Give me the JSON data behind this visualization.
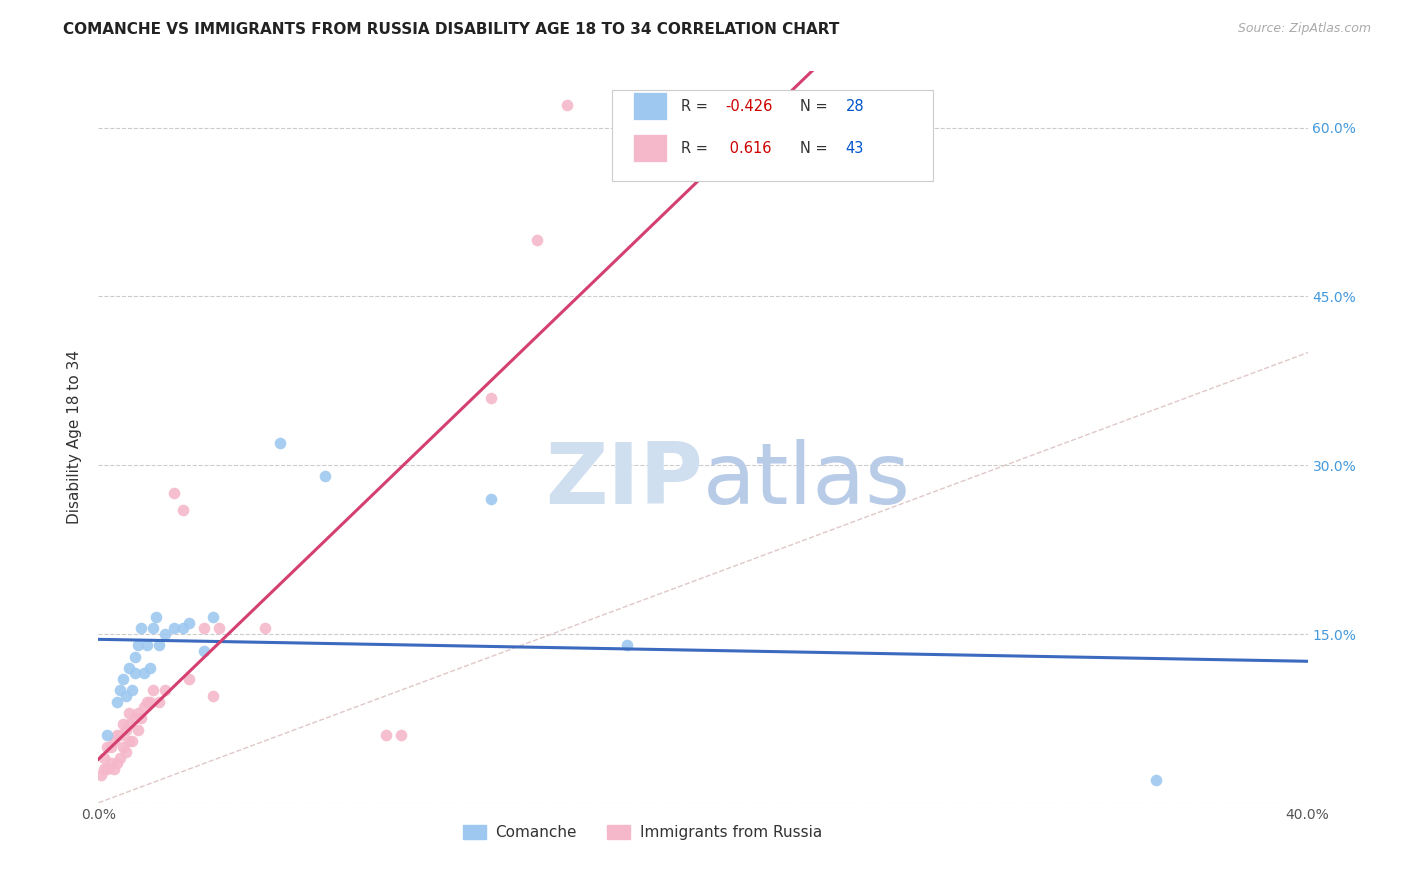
{
  "title": "COMANCHE VS IMMIGRANTS FROM RUSSIA DISABILITY AGE 18 TO 34 CORRELATION CHART",
  "source": "Source: ZipAtlas.com",
  "ylabel": "Disability Age 18 to 34",
  "xlim": [
    0.0,
    0.4
  ],
  "ylim": [
    0.0,
    0.65
  ],
  "xticks": [
    0.0,
    0.1,
    0.2,
    0.3,
    0.4
  ],
  "yticks": [
    0.0,
    0.15,
    0.3,
    0.45,
    0.6
  ],
  "background_color": "#ffffff",
  "grid_color": "#cccccc",
  "comanche_x": [
    0.003,
    0.006,
    0.007,
    0.008,
    0.009,
    0.01,
    0.011,
    0.012,
    0.012,
    0.013,
    0.014,
    0.015,
    0.016,
    0.017,
    0.018,
    0.019,
    0.02,
    0.022,
    0.025,
    0.028,
    0.03,
    0.035,
    0.038,
    0.06,
    0.075,
    0.13,
    0.175,
    0.35
  ],
  "comanche_y": [
    0.06,
    0.09,
    0.1,
    0.11,
    0.095,
    0.12,
    0.1,
    0.115,
    0.13,
    0.14,
    0.155,
    0.115,
    0.14,
    0.12,
    0.155,
    0.165,
    0.14,
    0.15,
    0.155,
    0.155,
    0.16,
    0.135,
    0.165,
    0.32,
    0.29,
    0.27,
    0.14,
    0.02
  ],
  "russia_x": [
    0.001,
    0.002,
    0.002,
    0.003,
    0.003,
    0.004,
    0.004,
    0.005,
    0.005,
    0.006,
    0.006,
    0.007,
    0.007,
    0.008,
    0.008,
    0.009,
    0.009,
    0.01,
    0.01,
    0.01,
    0.011,
    0.012,
    0.013,
    0.013,
    0.014,
    0.015,
    0.016,
    0.017,
    0.018,
    0.02,
    0.022,
    0.025,
    0.028,
    0.03,
    0.035,
    0.038,
    0.04,
    0.055,
    0.095,
    0.1,
    0.13,
    0.145,
    0.155
  ],
  "russia_y": [
    0.025,
    0.03,
    0.04,
    0.03,
    0.05,
    0.035,
    0.05,
    0.03,
    0.055,
    0.035,
    0.06,
    0.04,
    0.06,
    0.05,
    0.07,
    0.045,
    0.065,
    0.055,
    0.07,
    0.08,
    0.055,
    0.075,
    0.065,
    0.08,
    0.075,
    0.085,
    0.09,
    0.09,
    0.1,
    0.09,
    0.1,
    0.275,
    0.26,
    0.11,
    0.155,
    0.095,
    0.155,
    0.155,
    0.06,
    0.06,
    0.36,
    0.5,
    0.62
  ],
  "comanche_color": "#9ec8f0",
  "russia_color": "#f5b8cb",
  "comanche_line_color": "#3b6abf",
  "russia_line_color": "#d44070",
  "diagonal_color": "#e0c8c8",
  "legend_R_comanche": "-0.426",
  "legend_N_comanche": "28",
  "legend_R_russia": "0.616",
  "legend_N_russia": "43",
  "legend_R_color": "#cc0000",
  "legend_N_color": "#0055cc",
  "watermark_zip": "ZIP",
  "watermark_atlas": "atlas",
  "watermark_color_zip": "#d0dff0",
  "watermark_color_atlas": "#b8cce8"
}
